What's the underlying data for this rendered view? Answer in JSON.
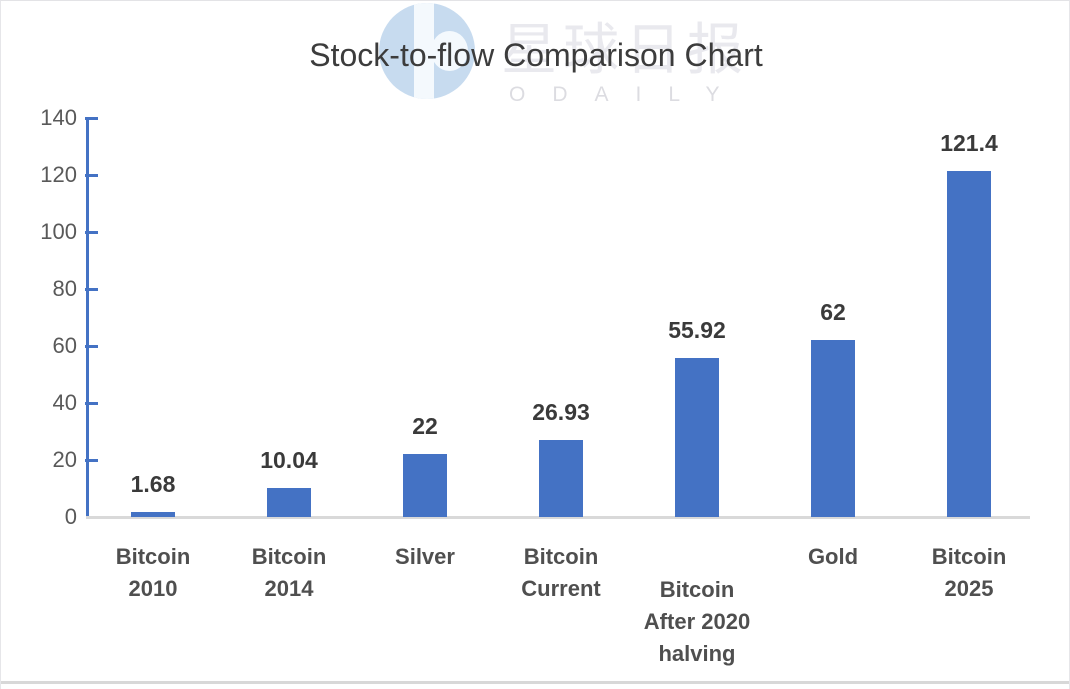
{
  "watermark": {
    "logo_icon": "odaily-logo",
    "cn_text": "星球日报",
    "en_text": "ODAILY"
  },
  "chart_data": {
    "type": "bar",
    "title": "Stock-to-flow Comparison Chart",
    "categories": [
      "Bitcoin\n2010",
      "Bitcoin\n2014",
      "Silver",
      "Bitcoin\nCurrent",
      "Bitcoin\nAfter 2020\nhalving",
      "Gold",
      "Bitcoin\n2025"
    ],
    "values": [
      1.68,
      10.04,
      22,
      26.93,
      55.92,
      62,
      121.4
    ],
    "value_labels": [
      "1.68",
      "10.04",
      "22",
      "26.93",
      "55.92",
      "62",
      "121.4"
    ],
    "xlabel": "",
    "ylabel": "",
    "ylim": [
      0,
      140
    ],
    "yticks": [
      0,
      20,
      40,
      60,
      80,
      100,
      120,
      140
    ],
    "grid": false,
    "legend": null,
    "bar_color": "#4472c4",
    "axis_color": "#4472c4",
    "baseline_color": "#d9d9d9"
  }
}
